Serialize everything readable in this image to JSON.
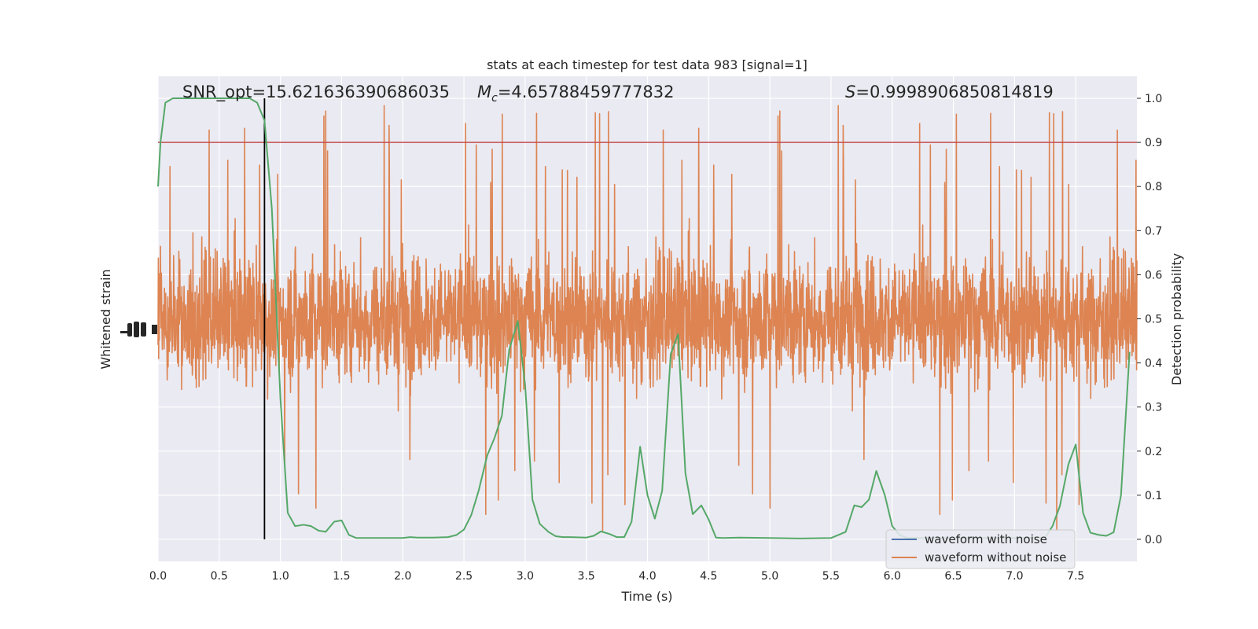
{
  "chart_data": {
    "type": "line",
    "title": "stats at each timestep for test data 983 [signal=1]",
    "xlabel": "Time (s)",
    "ylabel_left": "Whitened strain",
    "ylabel_right": "Detection probability",
    "xlim": [
      0,
      8
    ],
    "ylim_right": [
      -0.05,
      1.05
    ],
    "x_ticks": [
      "0.0",
      "0.5",
      "1.0",
      "1.5",
      "2.0",
      "2.5",
      "3.0",
      "3.5",
      "4.0",
      "4.5",
      "5.0",
      "5.5",
      "6.0",
      "6.5",
      "7.0",
      "7.5"
    ],
    "y_ticks_right": [
      "0.0",
      "0.1",
      "0.2",
      "0.3",
      "0.4",
      "0.5",
      "0.6",
      "0.7",
      "0.8",
      "0.9",
      "1.0"
    ],
    "annotations": {
      "snr": "SNR_opt=15.621636390686035",
      "mc_symbol": "M",
      "mc_sub": "c",
      "mc_value": "=4.65788459777832",
      "s_symbol": "S",
      "s_value": "=0.9998906850814819"
    },
    "threshold": 0.9,
    "marker_time": 0.87,
    "legend": {
      "placement": "lower-right",
      "entries": [
        "waveform with noise",
        "waveform without noise"
      ]
    },
    "colors": {
      "noise_series": "#dd8452",
      "clean_series": "#4c72b0",
      "probability": "#55a868",
      "threshold": "#c44e52",
      "marker": "#000000",
      "axes_bg": "#eaeaf2",
      "grid": "#ffffff"
    },
    "series": [
      {
        "name": "waveform without noise",
        "description": "dense orange whitened-strain trace, approx. band 0.3–0.7 with spikes to ~1.0 and ~0.0 on the probability scale"
      },
      {
        "name": "detection probability",
        "x": [
          0.0,
          0.02,
          0.06,
          0.12,
          0.25,
          0.5,
          0.75,
          0.81,
          0.87,
          0.93,
          1.0,
          1.06,
          1.12,
          1.19,
          1.25,
          1.31,
          1.37,
          1.44,
          1.5,
          1.56,
          1.62,
          1.75,
          2.0,
          2.06,
          2.12,
          2.25,
          2.37,
          2.44,
          2.5,
          2.56,
          2.62,
          2.69,
          2.75,
          2.81,
          2.87,
          2.94,
          3.0,
          3.06,
          3.12,
          3.19,
          3.25,
          3.31,
          3.37,
          3.5,
          3.56,
          3.62,
          3.69,
          3.75,
          3.81,
          3.87,
          3.94,
          4.0,
          4.06,
          4.12,
          4.19,
          4.25,
          4.31,
          4.37,
          4.44,
          4.5,
          4.56,
          4.62,
          4.75,
          5.0,
          5.25,
          5.5,
          5.62,
          5.69,
          5.75,
          5.81,
          5.87,
          5.94,
          6.0,
          6.06,
          6.12,
          6.25,
          6.5,
          7.0,
          7.25,
          7.31,
          7.37,
          7.44,
          7.5,
          7.56,
          7.62,
          7.69,
          7.75,
          7.81,
          7.87,
          7.94
        ],
        "y": [
          0.8,
          0.9,
          0.99,
          1.0,
          1.0,
          1.0,
          1.0,
          0.99,
          0.95,
          0.75,
          0.32,
          0.06,
          0.03,
          0.033,
          0.03,
          0.02,
          0.017,
          0.04,
          0.043,
          0.01,
          0.003,
          0.003,
          0.003,
          0.005,
          0.004,
          0.004,
          0.005,
          0.01,
          0.022,
          0.055,
          0.11,
          0.19,
          0.23,
          0.28,
          0.43,
          0.495,
          0.35,
          0.09,
          0.035,
          0.017,
          0.007,
          0.005,
          0.005,
          0.004,
          0.008,
          0.018,
          0.012,
          0.005,
          0.005,
          0.04,
          0.21,
          0.1,
          0.047,
          0.11,
          0.42,
          0.465,
          0.15,
          0.057,
          0.077,
          0.045,
          0.004,
          0.003,
          0.004,
          0.003,
          0.002,
          0.003,
          0.017,
          0.077,
          0.073,
          0.09,
          0.155,
          0.1,
          0.03,
          0.01,
          0.003,
          0.003,
          0.003,
          0.003,
          0.004,
          0.03,
          0.075,
          0.17,
          0.215,
          0.06,
          0.015,
          0.01,
          0.008,
          0.016,
          0.1,
          0.425
        ]
      }
    ]
  }
}
